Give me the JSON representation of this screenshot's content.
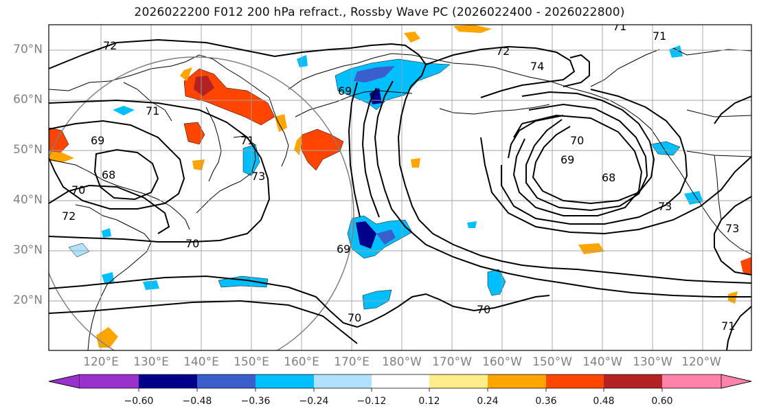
{
  "title": "2026022200 F012 200 hPa refract., Rossby Wave PC (2026022400 - 2026022800)",
  "lat_labels": [
    "70°N",
    "60°N",
    "50°N",
    "40°N",
    "30°N",
    "20°N"
  ],
  "lon_labels": [
    "120°E",
    "130°E",
    "140°E",
    "150°E",
    "160°E",
    "170°E",
    "180°W",
    "170°W",
    "160°W",
    "150°W",
    "140°W",
    "130°W",
    "120°W"
  ],
  "contour_labels": [
    "72",
    "71",
    "71",
    "69",
    "71",
    "69",
    "73",
    "68",
    "70",
    "72",
    "70",
    "69",
    "72",
    "74",
    "70",
    "69",
    "71",
    "68",
    "73",
    "70",
    "73",
    "70",
    "71"
  ],
  "colorbar": {
    "tick_labels": [
      "−0.60",
      "−0.48",
      "−0.36",
      "−0.24",
      "−0.12",
      "0.12",
      "0.24",
      "0.36",
      "0.48",
      "0.60"
    ],
    "colors": [
      "#9932cc",
      "#00008b",
      "#3a5fcd",
      "#00bfff",
      "#b0e2ff",
      "#ffffff",
      "#ffec8b",
      "#ffa500",
      "#ff4500",
      "#b22222",
      "#ff82ab"
    ]
  },
  "colors": {
    "axis_label": "#808080",
    "contour": "#000000",
    "grid": "#a0a0a0"
  }
}
